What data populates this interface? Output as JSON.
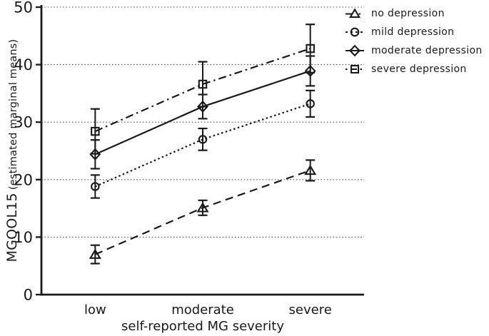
{
  "chart_data": {
    "type": "line",
    "title": "",
    "xlabel": "self-reported MG severity",
    "ylabel_main": "MGQOL15",
    "ylabel_sub": "(estimated marginal means)",
    "categories": [
      "low",
      "moderate",
      "severe"
    ],
    "y_axis": {
      "min": 0,
      "max": 50,
      "tick_step": 10,
      "ticks": [
        0,
        10,
        20,
        30,
        40,
        50
      ]
    },
    "grid": "horizontal-dotted",
    "legend_position": "top-right",
    "series": [
      {
        "name": "no depression",
        "marker": "triangle",
        "line_style": "dashed",
        "values": [
          7.0,
          15.1,
          21.6
        ],
        "errors": [
          1.6,
          1.3,
          1.8
        ]
      },
      {
        "name": "mild depression",
        "marker": "circle",
        "line_style": "dotted",
        "values": [
          18.8,
          27.0,
          33.2
        ],
        "errors": [
          2.0,
          1.9,
          2.3
        ]
      },
      {
        "name": "moderate depression",
        "marker": "diamond",
        "line_style": "solid",
        "values": [
          24.4,
          32.7,
          38.9
        ],
        "errors": [
          2.5,
          2.1,
          2.6
        ]
      },
      {
        "name": "severe depression",
        "marker": "square",
        "line_style": "dash-dot",
        "values": [
          28.4,
          36.6,
          42.8
        ],
        "errors": [
          3.9,
          3.9,
          4.2
        ]
      }
    ],
    "colors": {
      "line": "#1a1a1a",
      "grid": "#5a5a5a",
      "background": "#ffffff"
    }
  }
}
